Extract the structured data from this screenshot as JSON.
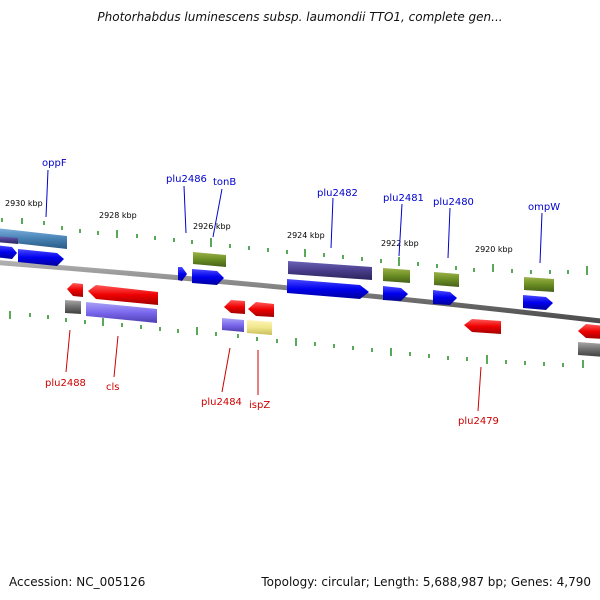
{
  "title": "Photorhabdus luminescens subsp. laumondii TTO1, complete gen...",
  "footer": {
    "accession": "Accession: NC_005126",
    "summary": "Topology: circular; Length: 5,688,987 bp; Genes: 4,790"
  },
  "scale_labels": [
    "2930 kbp",
    "2928 kbp",
    "2926 kbp",
    "2924 kbp",
    "2922 kbp",
    "2920 kbp"
  ],
  "gene_labels_top": [
    "oppF",
    "plu2486",
    "tonB",
    "plu2482",
    "plu2481",
    "plu2480",
    "ompW"
  ],
  "gene_labels_bottom": [
    "plu2488",
    "cls",
    "plu2484",
    "ispZ",
    "plu2479"
  ],
  "colors": {
    "forward_gene": "#0000ee",
    "reverse_gene": "#ee0000",
    "label_blue": "#0000cc",
    "label_red": "#cc0000",
    "tick_green": "#228b22",
    "backbone": "#808080"
  }
}
